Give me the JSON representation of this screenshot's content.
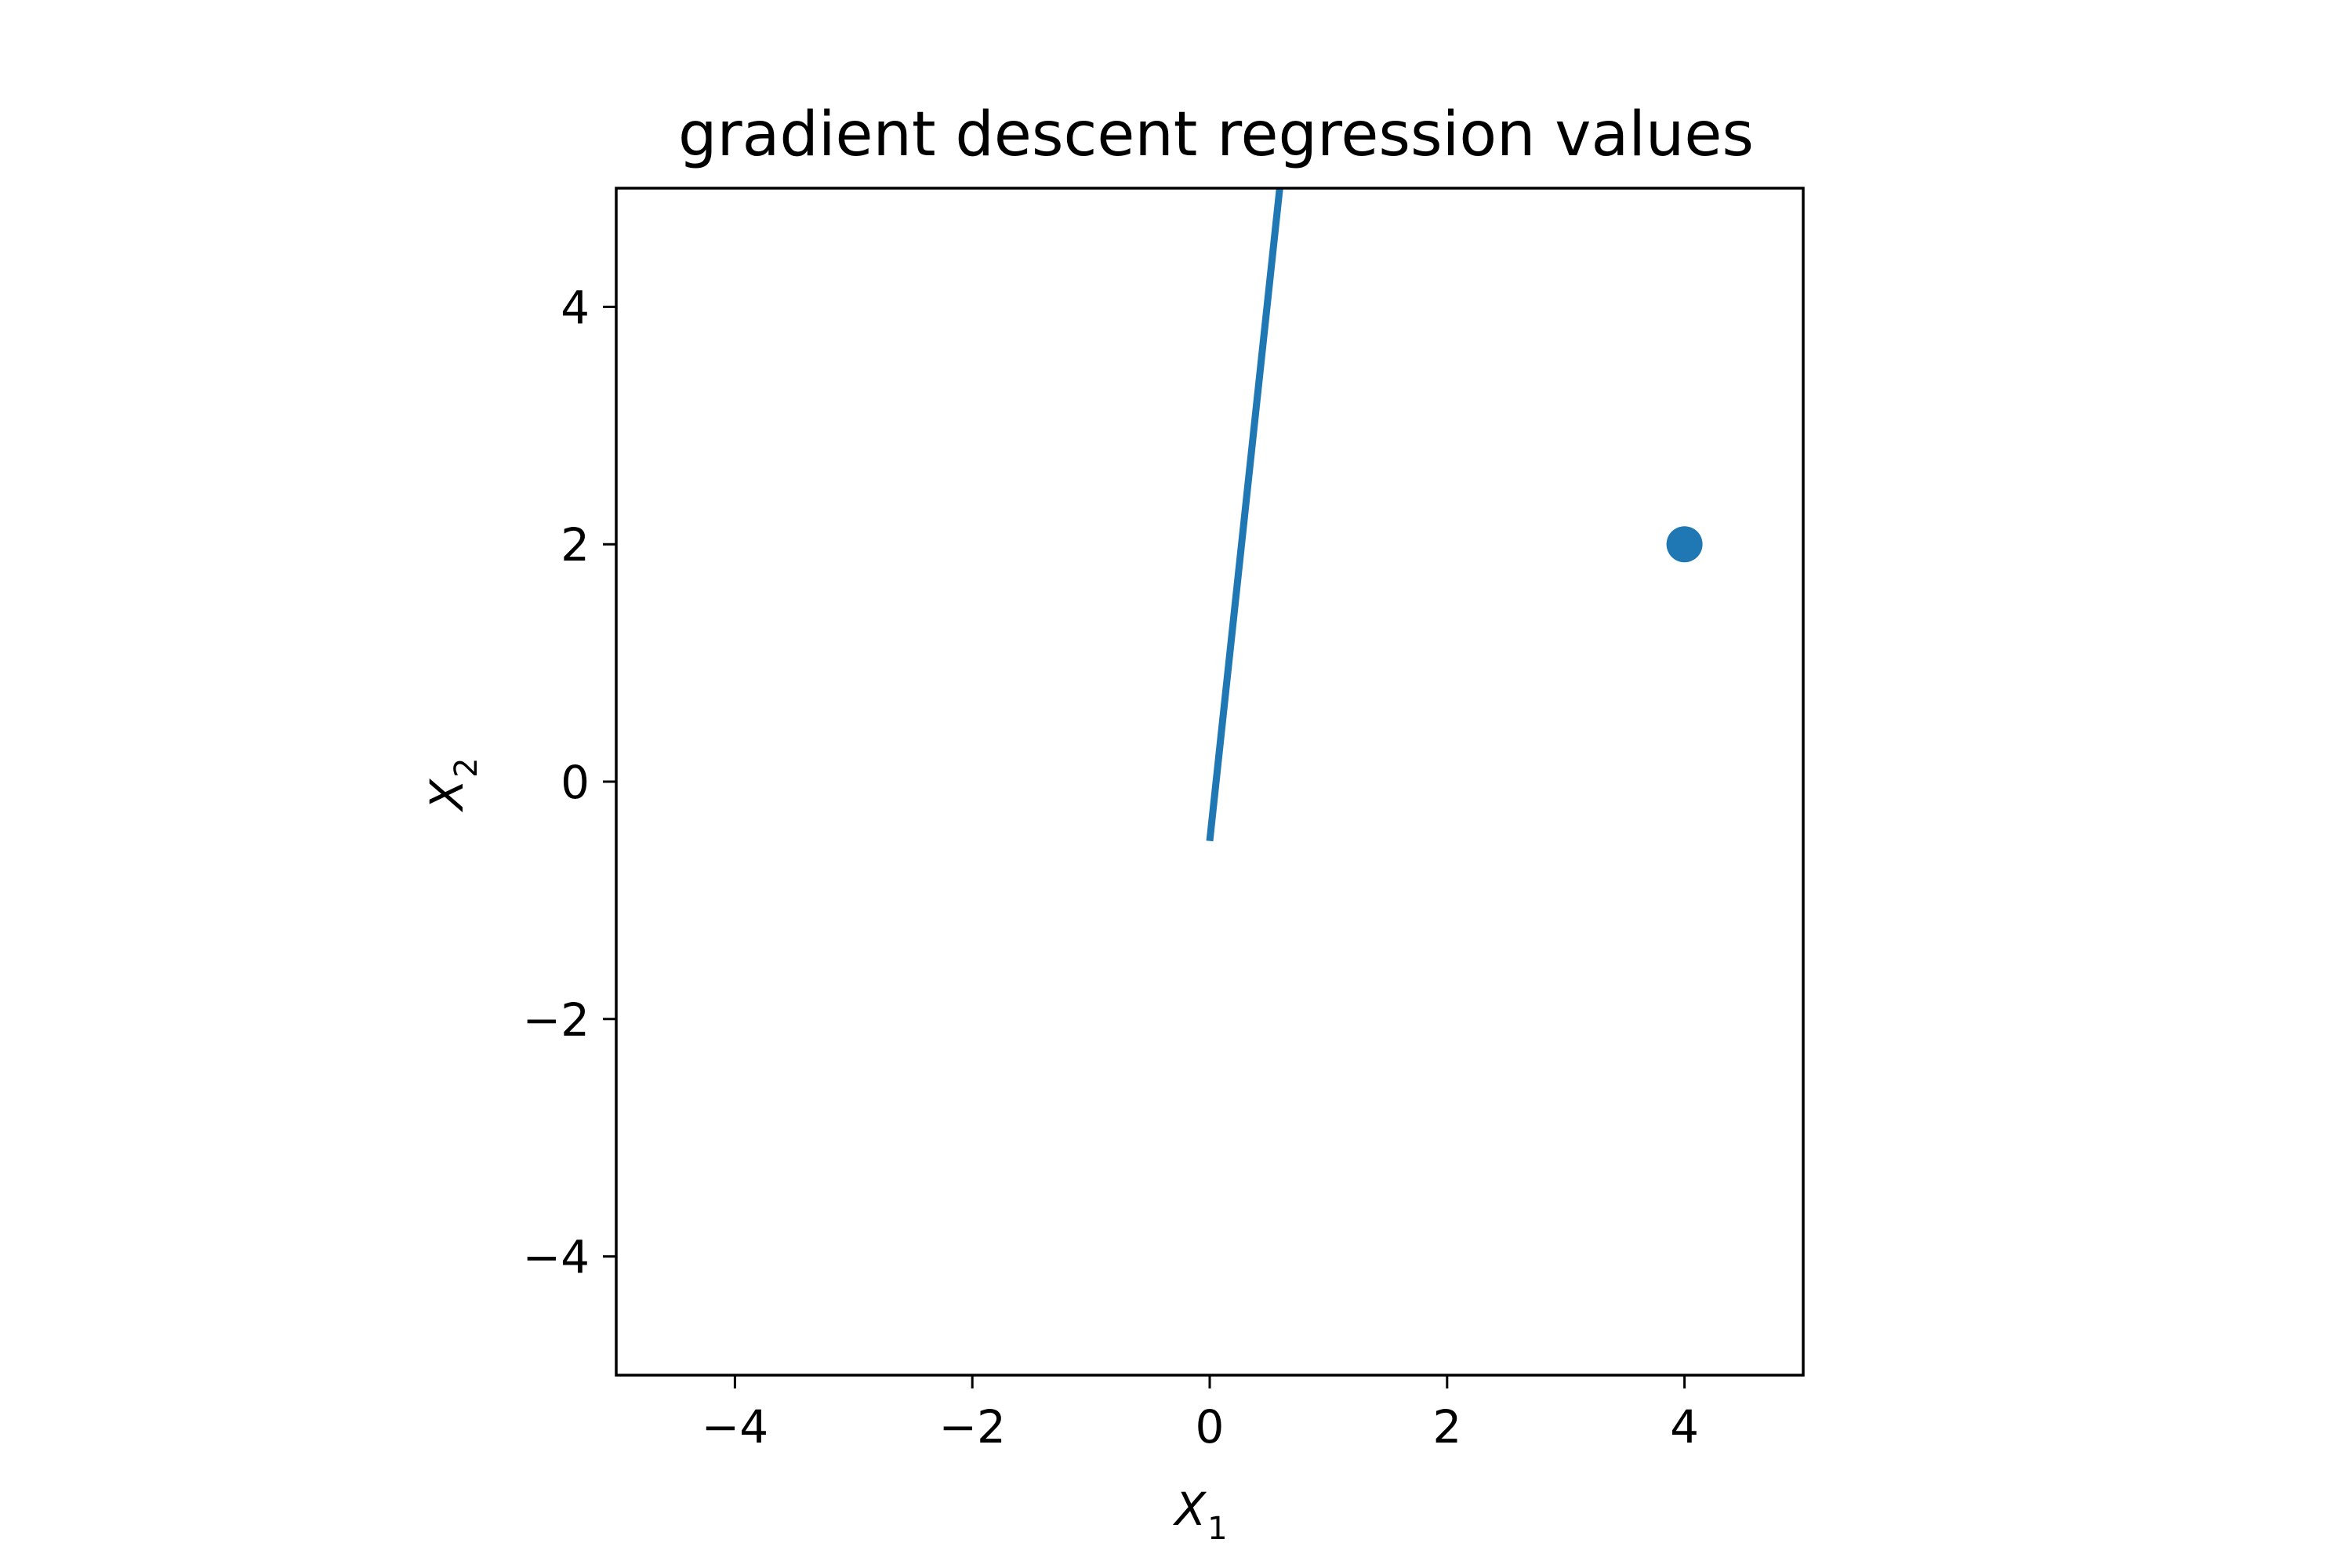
{
  "chart_data": {
    "type": "line",
    "title": "gradient descent regression values",
    "xlabel": {
      "main": "X",
      "sub": "1"
    },
    "ylabel": {
      "main": "X",
      "sub": "2"
    },
    "xlim": [
      -5,
      5
    ],
    "ylim": [
      -5,
      5
    ],
    "xticks": [
      -4,
      -2,
      0,
      2,
      4
    ],
    "yticks": [
      -4,
      -2,
      0,
      2,
      4
    ],
    "xtick_labels": [
      "−4",
      "−2",
      "0",
      "2",
      "4"
    ],
    "ytick_labels": [
      "−4",
      "−2",
      "0",
      "2",
      "4"
    ],
    "grid": false,
    "series": [
      {
        "kind": "line",
        "color": "#1f77b4",
        "x": [
          0.0,
          0.59
        ],
        "y": [
          -0.5,
          5.0
        ]
      },
      {
        "kind": "scatter",
        "color": "#1f77b4",
        "x": [
          4.0
        ],
        "y": [
          2.0
        ]
      }
    ]
  }
}
